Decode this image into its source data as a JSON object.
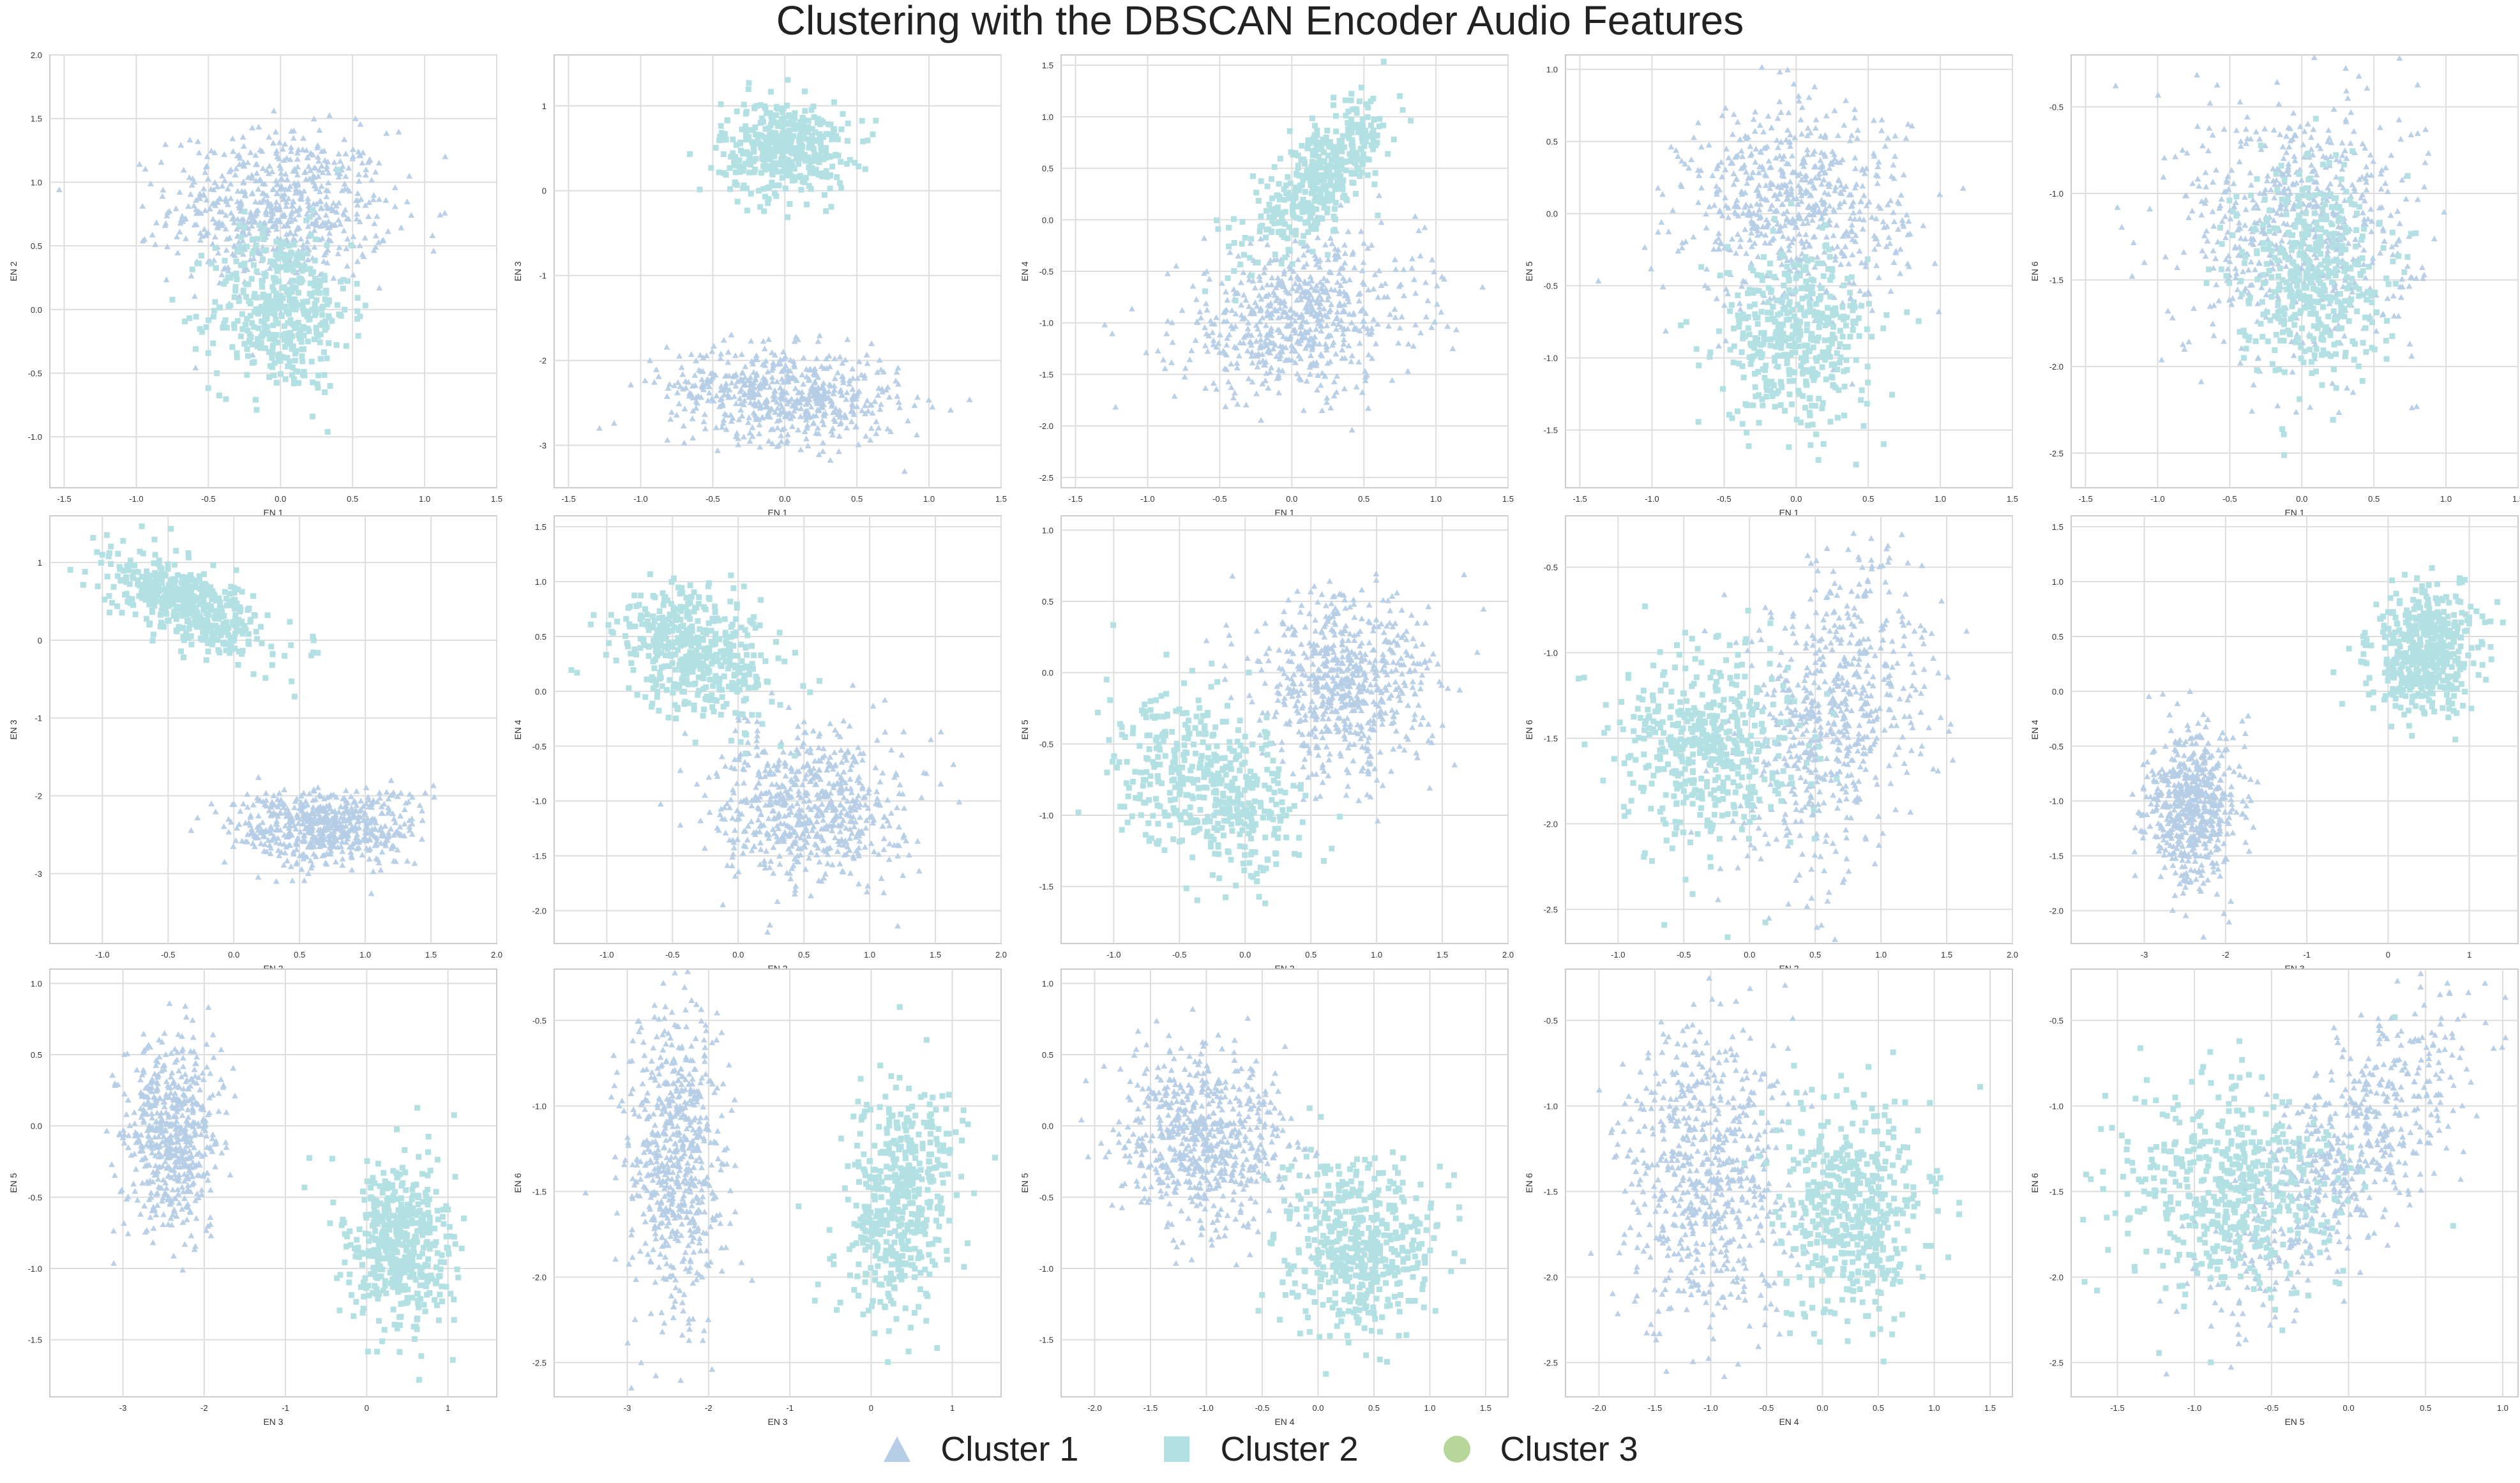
{
  "figure": {
    "title": "Clustering with the DBSCAN Encoder Audio Features",
    "legend": [
      {
        "label": "Cluster 1",
        "marker": "triangle-icon",
        "color": "#b5cde6"
      },
      {
        "label": "Cluster 2",
        "marker": "square-icon",
        "color": "#b3e0e3"
      },
      {
        "label": "Cluster 3",
        "marker": "circle-icon",
        "color": "#b7d69a"
      }
    ]
  },
  "colors": {
    "cluster1": "#b5cde6",
    "cluster2": "#b3e0e3",
    "cluster3": "#b7d69a",
    "grid": "#dddddd",
    "frame": "#cccccc",
    "text": "#333333"
  },
  "chart_data": [
    {
      "type": "scatter",
      "xlabel": "EN 1",
      "ylabel": "EN 2",
      "xlim": [
        -1.6,
        1.5
      ],
      "ylim": [
        -1.4,
        2.0
      ],
      "xticks": [
        "-1.5",
        "-1.0",
        "-0.5",
        "0.0",
        "0.5",
        "1.0",
        "1.5"
      ],
      "yticks": [
        "-1.0",
        "-0.5",
        "0.0",
        "0.5",
        "1.0",
        "1.5",
        "2.0"
      ],
      "grid": true,
      "series": [
        {
          "name": "Cluster 1",
          "clusters": [
            {
              "cx": 0.0,
              "cy": 0.8,
              "sx": 0.38,
              "sy": 0.3,
              "rho": 0.0,
              "n": 650
            }
          ]
        },
        {
          "name": "Cluster 2",
          "clusters": [
            {
              "cx": 0.0,
              "cy": 0.0,
              "sx": 0.24,
              "sy": 0.32,
              "rho": 0.0,
              "n": 450
            }
          ]
        }
      ]
    },
    {
      "type": "scatter",
      "xlabel": "EN 1",
      "ylabel": "EN 3",
      "xlim": [
        -1.6,
        1.5
      ],
      "ylim": [
        -3.5,
        1.6
      ],
      "xticks": [
        "-1.5",
        "-1.0",
        "-0.5",
        "0.0",
        "0.5",
        "1.0",
        "1.5"
      ],
      "yticks": [
        "-3",
        "-2",
        "-1",
        "0",
        "1"
      ],
      "grid": true,
      "series": [
        {
          "name": "Cluster 1",
          "clusters": [
            {
              "cx": 0.0,
              "cy": -2.4,
              "sx": 0.4,
              "sy": 0.28,
              "rho": -0.2,
              "n": 600
            }
          ]
        },
        {
          "name": "Cluster 2",
          "clusters": [
            {
              "cx": 0.0,
              "cy": 0.5,
              "sx": 0.22,
              "sy": 0.28,
              "rho": 0.0,
              "n": 450
            }
          ]
        }
      ]
    },
    {
      "type": "scatter",
      "xlabel": "EN 1",
      "ylabel": "EN 4",
      "xlim": [
        -1.6,
        1.5
      ],
      "ylim": [
        -2.6,
        1.6
      ],
      "xticks": [
        "-1.5",
        "-1.0",
        "-0.5",
        "0.0",
        "0.5",
        "1.0",
        "1.5"
      ],
      "yticks": [
        "-2.5",
        "-2.0",
        "-1.5",
        "-1.0",
        "-0.5",
        "0.0",
        "0.5",
        "1.0",
        "1.5"
      ],
      "grid": true,
      "series": [
        {
          "name": "Cluster 1",
          "clusters": [
            {
              "cx": 0.05,
              "cy": -0.95,
              "sx": 0.42,
              "sy": 0.38,
              "rho": 0.2,
              "n": 650
            }
          ]
        },
        {
          "name": "Cluster 2",
          "clusters": [
            {
              "cx": 0.2,
              "cy": 0.4,
              "sx": 0.24,
              "sy": 0.35,
              "rho": 0.75,
              "n": 450
            }
          ]
        }
      ]
    },
    {
      "type": "scatter",
      "xlabel": "EN 1",
      "ylabel": "EN 5",
      "xlim": [
        -1.6,
        1.5
      ],
      "ylim": [
        -1.9,
        1.1
      ],
      "xticks": [
        "-1.5",
        "-1.0",
        "-0.5",
        "0.0",
        "0.5",
        "1.0",
        "1.5"
      ],
      "yticks": [
        "-1.5",
        "-1.0",
        "-0.5",
        "0.0",
        "0.5",
        "1.0"
      ],
      "grid": true,
      "series": [
        {
          "name": "Cluster 1",
          "clusters": [
            {
              "cx": 0.0,
              "cy": 0.05,
              "sx": 0.38,
              "sy": 0.35,
              "rho": 0.0,
              "n": 650
            }
          ]
        },
        {
          "name": "Cluster 2",
          "clusters": [
            {
              "cx": 0.0,
              "cy": -0.85,
              "sx": 0.26,
              "sy": 0.3,
              "rho": 0.0,
              "n": 450
            }
          ]
        }
      ]
    },
    {
      "type": "scatter",
      "xlabel": "EN 1",
      "ylabel": "EN 6",
      "xlim": [
        -1.6,
        1.5
      ],
      "ylim": [
        -2.7,
        -0.2
      ],
      "xticks": [
        "-1.5",
        "-1.0",
        "-0.5",
        "0.0",
        "0.5",
        "1.0",
        "1.5"
      ],
      "yticks": [
        "-2.5",
        "-2.0",
        "-1.5",
        "-1.0",
        "-0.5"
      ],
      "grid": true,
      "series": [
        {
          "name": "Cluster 1",
          "clusters": [
            {
              "cx": 0.0,
              "cy": -1.2,
              "sx": 0.4,
              "sy": 0.38,
              "rho": 0.0,
              "n": 650
            }
          ]
        },
        {
          "name": "Cluster 2",
          "clusters": [
            {
              "cx": 0.05,
              "cy": -1.45,
              "sx": 0.25,
              "sy": 0.3,
              "rho": 0.0,
              "n": 450
            }
          ]
        }
      ]
    },
    {
      "type": "scatter",
      "xlabel": "EN 2",
      "ylabel": "EN 3",
      "xlim": [
        -1.4,
        2.0
      ],
      "ylim": [
        -3.9,
        1.6
      ],
      "xticks": [
        "-1.0",
        "-0.5",
        "0.0",
        "0.5",
        "1.0",
        "1.5",
        "2.0"
      ],
      "yticks": [
        "-3",
        "-2",
        "-1",
        "0",
        "1"
      ],
      "grid": true,
      "series": [
        {
          "name": "Cluster 1",
          "clusters": [
            {
              "cx": 0.7,
              "cy": -2.4,
              "sx": 0.35,
              "sy": 0.25,
              "rho": 0.0,
              "n": 600
            }
          ]
        },
        {
          "name": "Cluster 2",
          "clusters": [
            {
              "cx": -0.35,
              "cy": 0.45,
              "sx": 0.3,
              "sy": 0.3,
              "rho": -0.6,
              "n": 500
            }
          ]
        }
      ]
    },
    {
      "type": "scatter",
      "xlabel": "EN 2",
      "ylabel": "EN 4",
      "xlim": [
        -1.4,
        2.0
      ],
      "ylim": [
        -2.3,
        1.6
      ],
      "xticks": [
        "-1.0",
        "-0.5",
        "0.0",
        "0.5",
        "1.0",
        "1.5",
        "2.0"
      ],
      "yticks": [
        "-2.0",
        "-1.5",
        "-1.0",
        "-0.5",
        "0.0",
        "0.5",
        "1.0",
        "1.5"
      ],
      "grid": true,
      "series": [
        {
          "name": "Cluster 1",
          "clusters": [
            {
              "cx": 0.55,
              "cy": -1.05,
              "sx": 0.35,
              "sy": 0.35,
              "rho": 0.0,
              "n": 650
            }
          ]
        },
        {
          "name": "Cluster 2",
          "clusters": [
            {
              "cx": -0.3,
              "cy": 0.35,
              "sx": 0.3,
              "sy": 0.3,
              "rho": -0.3,
              "n": 500
            }
          ]
        }
      ]
    },
    {
      "type": "scatter",
      "xlabel": "EN 2",
      "ylabel": "EN 5",
      "xlim": [
        -1.4,
        2.0
      ],
      "ylim": [
        -1.9,
        1.1
      ],
      "xticks": [
        "-1.0",
        "-0.5",
        "0.0",
        "0.5",
        "1.0",
        "1.5",
        "2.0"
      ],
      "yticks": [
        "-1.5",
        "-1.0",
        "-0.5",
        "0.0",
        "0.5",
        "1.0"
      ],
      "grid": true,
      "series": [
        {
          "name": "Cluster 1",
          "clusters": [
            {
              "cx": 0.75,
              "cy": -0.1,
              "sx": 0.33,
              "sy": 0.32,
              "rho": 0.0,
              "n": 650
            }
          ]
        },
        {
          "name": "Cluster 2",
          "clusters": [
            {
              "cx": -0.25,
              "cy": -0.8,
              "sx": 0.35,
              "sy": 0.3,
              "rho": -0.4,
              "n": 500
            }
          ]
        }
      ]
    },
    {
      "type": "scatter",
      "xlabel": "EN 2",
      "ylabel": "EN 6",
      "xlim": [
        -1.4,
        2.0
      ],
      "ylim": [
        -2.7,
        -0.2
      ],
      "xticks": [
        "-1.0",
        "-0.5",
        "0.0",
        "0.5",
        "1.0",
        "1.5",
        "2.0"
      ],
      "yticks": [
        "-2.5",
        "-2.0",
        "-1.5",
        "-1.0",
        "-0.5"
      ],
      "grid": true,
      "series": [
        {
          "name": "Cluster 1",
          "clusters": [
            {
              "cx": 0.65,
              "cy": -1.35,
              "sx": 0.35,
              "sy": 0.45,
              "rho": 0.3,
              "n": 650
            }
          ]
        },
        {
          "name": "Cluster 2",
          "clusters": [
            {
              "cx": -0.3,
              "cy": -1.55,
              "sx": 0.32,
              "sy": 0.28,
              "rho": 0.0,
              "n": 500
            }
          ]
        }
      ]
    },
    {
      "type": "scatter",
      "xlabel": "EN 3",
      "ylabel": "EN 4",
      "xlim": [
        -3.9,
        1.6
      ],
      "ylim": [
        -2.3,
        1.6
      ],
      "xticks": [
        "-3",
        "-2",
        "-1",
        "0",
        "1"
      ],
      "yticks": [
        "-2.0",
        "-1.5",
        "-1.0",
        "-0.5",
        "0.0",
        "0.5",
        "1.0",
        "1.5"
      ],
      "grid": true,
      "series": [
        {
          "name": "Cluster 1",
          "clusters": [
            {
              "cx": -2.4,
              "cy": -1.05,
              "sx": 0.28,
              "sy": 0.35,
              "rho": 0.0,
              "n": 600
            }
          ]
        },
        {
          "name": "Cluster 2",
          "clusters": [
            {
              "cx": 0.45,
              "cy": 0.35,
              "sx": 0.32,
              "sy": 0.28,
              "rho": 0.2,
              "n": 500
            }
          ]
        }
      ]
    },
    {
      "type": "scatter",
      "xlabel": "EN 3",
      "ylabel": "EN 5",
      "xlim": [
        -3.9,
        1.6
      ],
      "ylim": [
        -1.9,
        1.1
      ],
      "xticks": [
        "-3",
        "-2",
        "-1",
        "0",
        "1"
      ],
      "yticks": [
        "-1.5",
        "-1.0",
        "-0.5",
        "0.0",
        "0.5",
        "1.0"
      ],
      "grid": true,
      "series": [
        {
          "name": "Cluster 1",
          "clusters": [
            {
              "cx": -2.4,
              "cy": -0.05,
              "sx": 0.28,
              "sy": 0.33,
              "rho": 0.0,
              "n": 600
            }
          ]
        },
        {
          "name": "Cluster 2",
          "clusters": [
            {
              "cx": 0.4,
              "cy": -0.85,
              "sx": 0.32,
              "sy": 0.3,
              "rho": 0.0,
              "n": 500
            }
          ]
        }
      ]
    },
    {
      "type": "scatter",
      "xlabel": "EN 3",
      "ylabel": "EN 6",
      "xlim": [
        -3.9,
        1.6
      ],
      "ylim": [
        -2.7,
        -0.2
      ],
      "xticks": [
        "-3",
        "-2",
        "-1",
        "0",
        "1"
      ],
      "yticks": [
        "-2.5",
        "-2.0",
        "-1.5",
        "-1.0",
        "-0.5"
      ],
      "grid": true,
      "series": [
        {
          "name": "Cluster 1",
          "clusters": [
            {
              "cx": -2.4,
              "cy": -1.35,
              "sx": 0.3,
              "sy": 0.45,
              "rho": 0.0,
              "n": 650
            }
          ]
        },
        {
          "name": "Cluster 2",
          "clusters": [
            {
              "cx": 0.35,
              "cy": -1.55,
              "sx": 0.35,
              "sy": 0.35,
              "rho": 0.3,
              "n": 500
            }
          ]
        }
      ]
    },
    {
      "type": "scatter",
      "xlabel": "EN 4",
      "ylabel": "EN 5",
      "xlim": [
        -2.3,
        1.7
      ],
      "ylim": [
        -1.9,
        1.1
      ],
      "xticks": [
        "-2.0",
        "-1.5",
        "-1.0",
        "-0.5",
        "0.0",
        "0.5",
        "1.0",
        "1.5"
      ],
      "yticks": [
        "-1.5",
        "-1.0",
        "-0.5",
        "0.0",
        "0.5",
        "1.0"
      ],
      "grid": true,
      "series": [
        {
          "name": "Cluster 1",
          "clusters": [
            {
              "cx": -1.0,
              "cy": -0.1,
              "sx": 0.38,
              "sy": 0.3,
              "rho": 0.0,
              "n": 650
            }
          ]
        },
        {
          "name": "Cluster 2",
          "clusters": [
            {
              "cx": 0.35,
              "cy": -0.85,
              "sx": 0.33,
              "sy": 0.3,
              "rho": 0.0,
              "n": 500
            }
          ]
        }
      ]
    },
    {
      "type": "scatter",
      "xlabel": "EN 4",
      "ylabel": "EN 6",
      "xlim": [
        -2.3,
        1.7
      ],
      "ylim": [
        -2.7,
        -0.2
      ],
      "xticks": [
        "-2.0",
        "-1.5",
        "-1.0",
        "-0.5",
        "0.0",
        "0.5",
        "1.0",
        "1.5"
      ],
      "yticks": [
        "-2.5",
        "-2.0",
        "-1.5",
        "-1.0",
        "-0.5"
      ],
      "grid": true,
      "series": [
        {
          "name": "Cluster 1",
          "clusters": [
            {
              "cx": -1.05,
              "cy": -1.4,
              "sx": 0.38,
              "sy": 0.45,
              "rho": 0.0,
              "n": 650
            }
          ]
        },
        {
          "name": "Cluster 2",
          "clusters": [
            {
              "cx": 0.3,
              "cy": -1.6,
              "sx": 0.33,
              "sy": 0.3,
              "rho": 0.0,
              "n": 500
            }
          ]
        }
      ]
    },
    {
      "type": "scatter",
      "xlabel": "EN 5",
      "ylabel": "EN 6",
      "xlim": [
        -1.8,
        1.1
      ],
      "ylim": [
        -2.7,
        -0.2
      ],
      "xticks": [
        "-1.5",
        "-1.0",
        "-0.5",
        "0.0",
        "0.5",
        "1.0"
      ],
      "yticks": [
        "-2.5",
        "-2.0",
        "-1.5",
        "-1.0",
        "-0.5"
      ],
      "grid": true,
      "series": [
        {
          "name": "Cluster 1",
          "clusters": [
            {
              "cx": -0.05,
              "cy": -1.3,
              "sx": 0.42,
              "sy": 0.45,
              "rho": 0.75,
              "n": 650
            }
          ]
        },
        {
          "name": "Cluster 2",
          "clusters": [
            {
              "cx": -0.8,
              "cy": -1.5,
              "sx": 0.35,
              "sy": 0.32,
              "rho": 0.0,
              "n": 500
            }
          ]
        }
      ]
    }
  ]
}
